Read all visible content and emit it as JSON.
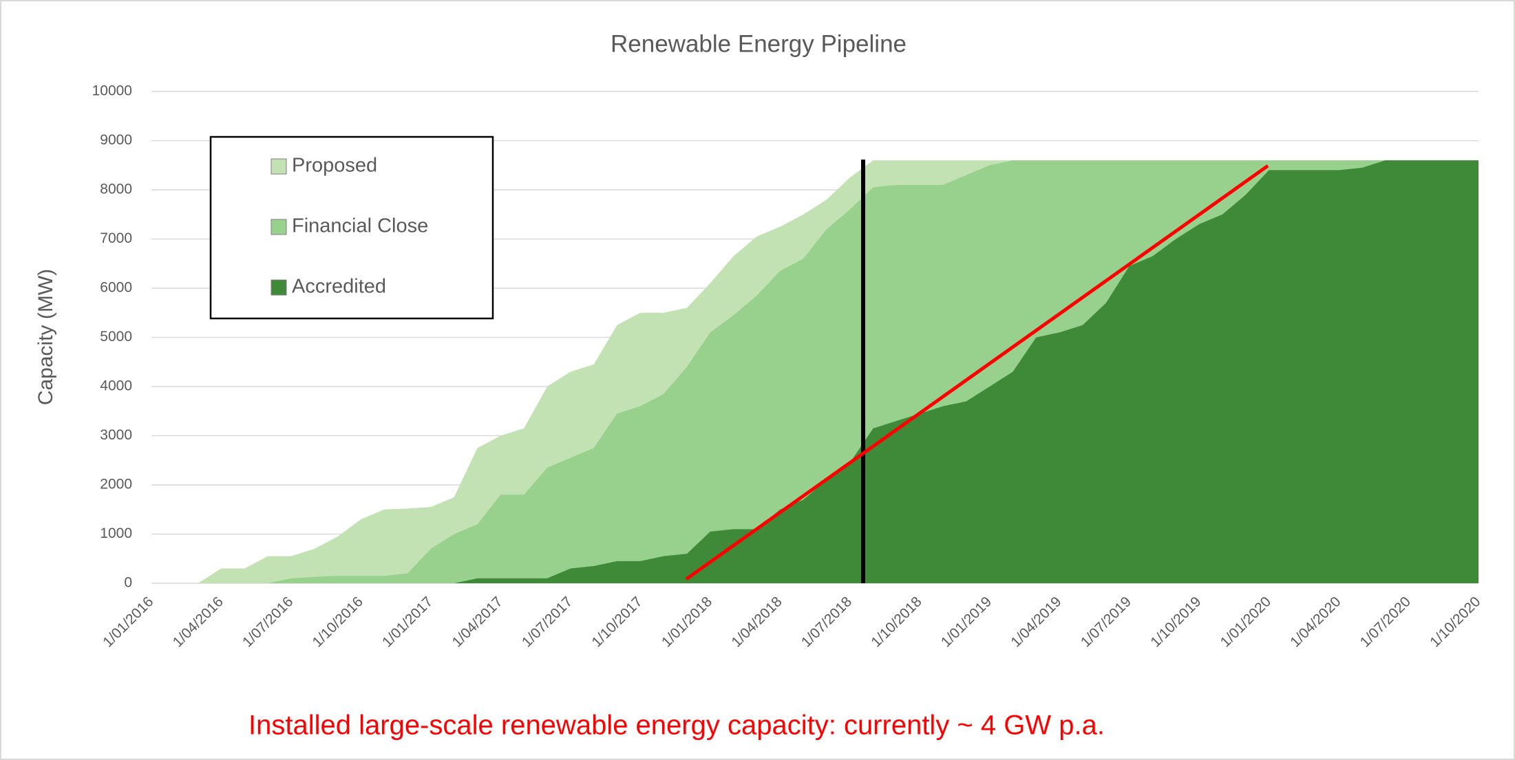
{
  "chart_data": {
    "type": "area",
    "title": "Renewable Energy Pipeline",
    "y_label": "Capacity (MW)",
    "annotation": "Installed large-scale renewable energy capacity:  currently ~ 4 GW p.a.",
    "categories": [
      "1/01/2016",
      null,
      null,
      "1/04/2016",
      null,
      null,
      "1/07/2016",
      null,
      null,
      "1/10/2016",
      null,
      null,
      "1/01/2017",
      null,
      null,
      "1/04/2017",
      null,
      null,
      "1/07/2017",
      null,
      null,
      "1/10/2017",
      null,
      null,
      "1/01/2018",
      null,
      null,
      "1/04/2018",
      null,
      null,
      "1/07/2018",
      null,
      null,
      "1/10/2018",
      null,
      null,
      "1/01/2019",
      null,
      null,
      "1/04/2019",
      null,
      null,
      "1/07/2019",
      null,
      null,
      "1/10/2019",
      null,
      null,
      "1/01/2020",
      null,
      null,
      "1/04/2020",
      null,
      null,
      "1/07/2020",
      null,
      null,
      "1/10/2020"
    ],
    "series": [
      {
        "name": "Proposed",
        "color": "#c2e2b3",
        "values": [
          0,
          0,
          0,
          300,
          300,
          550,
          550,
          700,
          950,
          1300,
          1500,
          1520,
          1550,
          1750,
          2750,
          3000,
          3150,
          4000,
          4300,
          4450,
          5250,
          5500,
          5500,
          5600,
          6100,
          6650,
          7050,
          7250,
          7500,
          7800,
          8250,
          8600,
          8600,
          8600,
          8600,
          8600,
          8600,
          8600,
          8600,
          8600,
          8600,
          8600,
          8600,
          8600,
          8600,
          8600,
          8600,
          8600,
          8600,
          8600,
          8600,
          8600,
          8600,
          8600,
          8600,
          8600,
          8600,
          8600
        ]
      },
      {
        "name": "Financial Close",
        "color": "#98d08e",
        "values": [
          0,
          0,
          0,
          0,
          0,
          0,
          100,
          130,
          150,
          150,
          150,
          200,
          700,
          1000,
          1200,
          1800,
          1800,
          2350,
          2550,
          2750,
          3450,
          3600,
          3850,
          4400,
          5100,
          5450,
          5850,
          6350,
          6600,
          7200,
          7600,
          8050,
          8100,
          8100,
          8100,
          8300,
          8500,
          8600,
          8600,
          8600,
          8600,
          8600,
          8600,
          8600,
          8600,
          8600,
          8600,
          8600,
          8600,
          8600,
          8600,
          8600,
          8600,
          8600,
          8600,
          8600,
          8600,
          8600
        ]
      },
      {
        "name": "Accredited",
        "color": "#3f8a38",
        "values": [
          0,
          0,
          0,
          0,
          0,
          0,
          0,
          0,
          0,
          0,
          0,
          0,
          0,
          0,
          100,
          100,
          100,
          100,
          300,
          350,
          450,
          450,
          550,
          600,
          1050,
          1100,
          1100,
          1500,
          1700,
          2100,
          2450,
          3150,
          3300,
          3450,
          3600,
          3700,
          4000,
          4300,
          5000,
          5100,
          5250,
          5700,
          6450,
          6650,
          7000,
          7300,
          7500,
          7900,
          8400,
          8400,
          8400,
          8400,
          8450,
          8600,
          8600,
          8600,
          8600,
          8600
        ]
      }
    ],
    "ylim": [
      0,
      10000
    ],
    "yticks": [
      0,
      1000,
      2000,
      3000,
      4000,
      5000,
      6000,
      7000,
      8000,
      9000,
      10000
    ],
    "grid": true
  }
}
